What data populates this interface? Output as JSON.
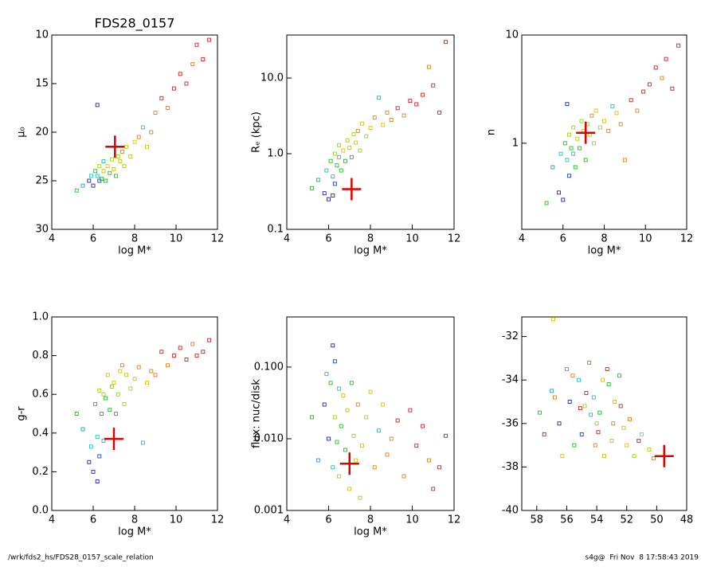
{
  "chart_data": [
    {
      "type": "scatter",
      "title": "FDS28_0157",
      "xlabel": "log M*",
      "ylabel": "μ₀",
      "xlim": [
        4,
        12
      ],
      "ylim": [
        30,
        10
      ],
      "xticks": [
        4,
        6,
        8,
        10,
        12
      ],
      "yticks": [
        10,
        15,
        20,
        25,
        30
      ],
      "ylog": false,
      "x": [
        5.2,
        5.5,
        5.8,
        5.9,
        6.0,
        6.1,
        6.2,
        6.3,
        6.3,
        6.4,
        6.5,
        6.5,
        6.6,
        6.7,
        6.8,
        6.9,
        7.0,
        7.1,
        7.2,
        7.3,
        7.4,
        7.5,
        7.6,
        7.8,
        8.0,
        8.2,
        8.4,
        8.6,
        8.8,
        9.0,
        9.3,
        9.6,
        9.9,
        10.2,
        10.5,
        10.8,
        11.0,
        11.3,
        11.6,
        6.2
      ],
      "y": [
        26,
        25.5,
        25,
        24.5,
        25.5,
        24,
        24.5,
        25,
        23.5,
        24.8,
        23,
        24,
        25,
        23.5,
        24.2,
        22.8,
        23.8,
        24.5,
        22.5,
        23,
        22,
        23.5,
        21.5,
        22.5,
        21,
        20.5,
        19.5,
        21.5,
        20,
        18,
        16.5,
        17.5,
        15.5,
        14,
        15,
        13,
        11,
        12.5,
        10.5,
        17.2
      ],
      "colors": [
        "#20c020",
        "#20a0c0",
        "#2020c0",
        "#20c0c0",
        "#2020c0",
        "#20c020",
        "#20c0c0",
        "#2040c0",
        "#a0d020",
        "#20c020",
        "#20c0c0",
        "#a0d020",
        "#20c020",
        "#d0c020",
        "#20c020",
        "#a0d020",
        "#d0c020",
        "#20c020",
        "#a0d020",
        "#d0c020",
        "#e08020",
        "#a0d020",
        "#d0c020",
        "#a0d020",
        "#d0c020",
        "#e08020",
        "#20c0c0",
        "#d0c020",
        "#e08020",
        "#e08020",
        "#d02020",
        "#e08020",
        "#d02020",
        "#d02020",
        "#d02020",
        "#e08020",
        "#d02020",
        "#d02020",
        "#d02020",
        "#2020c0"
      ],
      "highlight": {
        "x": 7.05,
        "y": 21.5,
        "color": "#e00000"
      }
    },
    {
      "type": "scatter",
      "xlabel": "log M*",
      "ylabel": "Rₑ (kpc)",
      "xlim": [
        4,
        12
      ],
      "ylim": [
        0.1,
        37
      ],
      "xticks": [
        4,
        6,
        8,
        10,
        12
      ],
      "yticks": [
        0.1,
        {
          "value": 1,
          "label": "1.0"
        },
        {
          "value": 10,
          "label": "10.0"
        }
      ],
      "ylog": true,
      "x": [
        5.2,
        5.5,
        5.8,
        5.9,
        6.0,
        6.1,
        6.2,
        6.3,
        6.3,
        6.4,
        6.5,
        6.5,
        6.6,
        6.7,
        6.8,
        6.9,
        7.0,
        7.1,
        7.2,
        7.3,
        7.4,
        7.5,
        7.6,
        7.8,
        8.0,
        8.2,
        8.4,
        8.6,
        8.8,
        9.0,
        9.3,
        9.6,
        9.9,
        10.2,
        10.5,
        10.8,
        11.0,
        11.3,
        11.6,
        6.2
      ],
      "y": [
        0.35,
        0.45,
        0.3,
        0.6,
        0.25,
        0.8,
        0.5,
        0.4,
        1.0,
        0.7,
        0.9,
        1.3,
        0.6,
        1.1,
        0.8,
        1.5,
        1.2,
        0.9,
        1.8,
        1.4,
        2.0,
        1.1,
        2.5,
        1.7,
        2.2,
        3.0,
        5.5,
        2.4,
        3.5,
        2.8,
        4.0,
        3.2,
        5.0,
        4.5,
        6.0,
        14,
        8,
        3.5,
        30,
        0.28
      ],
      "colors": [
        "#20c020",
        "#20a0c0",
        "#2020c0",
        "#20c0c0",
        "#2020c0",
        "#20c020",
        "#20c0c0",
        "#2040c0",
        "#a0d020",
        "#20c020",
        "#20c0c0",
        "#a0d020",
        "#20c020",
        "#d0c020",
        "#20c020",
        "#a0d020",
        "#d0c020",
        "#20c020",
        "#a0d020",
        "#d0c020",
        "#e08020",
        "#a0d020",
        "#d0c020",
        "#a0d020",
        "#d0c020",
        "#e08020",
        "#20c0c0",
        "#d0c020",
        "#e08020",
        "#e08020",
        "#d02020",
        "#e08020",
        "#d02020",
        "#d02020",
        "#d02020",
        "#e08020",
        "#d02020",
        "#d02020",
        "#d02020",
        "#2020c0"
      ],
      "highlight": {
        "x": 7.1,
        "y": 0.34,
        "color": "#e00000"
      }
    },
    {
      "type": "scatter",
      "xlabel": "log M*",
      "ylabel": "n",
      "xlim": [
        4,
        12
      ],
      "ylim": [
        0.16,
        10
      ],
      "xticks": [
        4,
        6,
        8,
        10,
        12
      ],
      "yticks": [
        1,
        10
      ],
      "ylog": true,
      "x": [
        5.2,
        5.5,
        5.8,
        5.9,
        6.0,
        6.1,
        6.2,
        6.3,
        6.3,
        6.4,
        6.5,
        6.5,
        6.6,
        6.7,
        6.8,
        6.9,
        7.0,
        7.1,
        7.2,
        7.3,
        7.4,
        7.5,
        7.6,
        7.8,
        8.0,
        8.2,
        8.4,
        8.6,
        8.8,
        9.0,
        9.3,
        9.6,
        9.9,
        10.2,
        10.5,
        10.8,
        11.0,
        11.3,
        11.6,
        6.2
      ],
      "y": [
        0.28,
        0.6,
        0.35,
        0.8,
        0.3,
        1.0,
        0.7,
        0.5,
        1.2,
        0.9,
        0.8,
        1.4,
        0.6,
        1.1,
        0.9,
        1.6,
        1.3,
        0.7,
        1.5,
        1.2,
        1.8,
        1.0,
        2.0,
        1.4,
        1.6,
        1.3,
        2.2,
        1.9,
        1.5,
        0.7,
        2.5,
        2.0,
        3.0,
        3.5,
        5,
        4,
        6,
        3.2,
        8,
        2.3
      ],
      "colors": [
        "#20c020",
        "#20a0c0",
        "#2020c0",
        "#20c0c0",
        "#2020c0",
        "#20c020",
        "#20c0c0",
        "#2040c0",
        "#a0d020",
        "#20c020",
        "#20c0c0",
        "#a0d020",
        "#20c020",
        "#d0c020",
        "#20c020",
        "#a0d020",
        "#d0c020",
        "#20c020",
        "#a0d020",
        "#d0c020",
        "#e08020",
        "#a0d020",
        "#d0c020",
        "#a0d020",
        "#d0c020",
        "#e08020",
        "#20c0c0",
        "#d0c020",
        "#e08020",
        "#e08020",
        "#d02020",
        "#e08020",
        "#d02020",
        "#d02020",
        "#d02020",
        "#e08020",
        "#d02020",
        "#d02020",
        "#d02020",
        "#2020c0"
      ],
      "highlight": {
        "x": 7.1,
        "y": 1.25,
        "color": "#e00000"
      }
    },
    {
      "type": "scatter",
      "xlabel": "log M*",
      "ylabel": "g-r",
      "xlim": [
        4,
        12
      ],
      "ylim": [
        0,
        1
      ],
      "xticks": [
        4,
        6,
        8,
        10,
        12
      ],
      "yticks": [
        {
          "value": 0,
          "label": "0.0"
        },
        0.2,
        0.4,
        0.6,
        0.8,
        {
          "value": 1,
          "label": "1.0"
        }
      ],
      "ylog": false,
      "x": [
        5.2,
        5.5,
        5.8,
        5.9,
        6.0,
        6.1,
        6.2,
        6.3,
        6.3,
        6.4,
        6.5,
        6.5,
        6.6,
        6.7,
        6.8,
        6.9,
        7.0,
        7.1,
        7.2,
        7.3,
        7.4,
        7.5,
        7.6,
        7.8,
        8.0,
        8.2,
        8.4,
        8.6,
        8.8,
        9.0,
        9.3,
        9.6,
        9.9,
        10.2,
        10.5,
        10.8,
        11.0,
        11.3,
        11.6,
        6.2
      ],
      "y": [
        0.5,
        0.42,
        0.25,
        0.33,
        0.2,
        0.55,
        0.38,
        0.28,
        0.62,
        0.5,
        0.36,
        0.6,
        0.58,
        0.7,
        0.52,
        0.64,
        0.66,
        0.5,
        0.6,
        0.72,
        0.75,
        0.55,
        0.7,
        0.63,
        0.68,
        0.74,
        0.35,
        0.66,
        0.72,
        0.7,
        0.82,
        0.75,
        0.8,
        0.84,
        0.78,
        0.86,
        0.8,
        0.82,
        0.88,
        0.15
      ],
      "colors": [
        "#20c020",
        "#20a0c0",
        "#2020c0",
        "#20c0c0",
        "#2020c0",
        "#20c020",
        "#20c0c0",
        "#2040c0",
        "#a0d020",
        "#20c020",
        "#20c0c0",
        "#a0d020",
        "#20c020",
        "#d0c020",
        "#20c020",
        "#a0d020",
        "#d0c020",
        "#20c020",
        "#a0d020",
        "#d0c020",
        "#e08020",
        "#a0d020",
        "#d0c020",
        "#a0d020",
        "#d0c020",
        "#e08020",
        "#20c0c0",
        "#d0c020",
        "#e08020",
        "#e08020",
        "#d02020",
        "#e08020",
        "#d02020",
        "#d02020",
        "#d02020",
        "#e08020",
        "#d02020",
        "#d02020",
        "#d02020",
        "#2020c0"
      ],
      "highlight": {
        "x": 7.0,
        "y": 0.37,
        "color": "#e00000"
      }
    },
    {
      "type": "scatter",
      "xlabel": "log M*",
      "ylabel": "flux: nuc/disk",
      "xlim": [
        4,
        12
      ],
      "ylim": [
        0.001,
        0.5
      ],
      "xticks": [
        4,
        6,
        8,
        10,
        12
      ],
      "yticks": [
        0.001,
        {
          "value": 0.01,
          "label": "0.010"
        },
        {
          "value": 0.1,
          "label": "0.100"
        }
      ],
      "ylog": true,
      "x": [
        5.2,
        5.5,
        5.8,
        5.9,
        6.0,
        6.1,
        6.2,
        6.3,
        6.3,
        6.4,
        6.5,
        6.5,
        6.6,
        6.7,
        6.8,
        6.9,
        7.0,
        7.1,
        7.2,
        7.3,
        7.4,
        7.5,
        7.6,
        7.8,
        8.0,
        8.2,
        8.4,
        8.6,
        8.8,
        9.0,
        9.3,
        9.6,
        9.9,
        10.2,
        10.5,
        10.8,
        11.0,
        11.3,
        11.6,
        6.2
      ],
      "y": [
        0.02,
        0.005,
        0.03,
        0.08,
        0.01,
        0.06,
        0.004,
        0.12,
        0.02,
        0.009,
        0.05,
        0.003,
        0.015,
        0.04,
        0.007,
        0.025,
        0.002,
        0.06,
        0.011,
        0.005,
        0.03,
        0.0015,
        0.008,
        0.02,
        0.045,
        0.004,
        0.013,
        0.03,
        0.006,
        0.01,
        0.018,
        0.003,
        0.025,
        0.008,
        0.015,
        0.005,
        0.002,
        0.004,
        0.011,
        0.2
      ],
      "colors": [
        "#20c020",
        "#20a0c0",
        "#2020c0",
        "#20c0c0",
        "#2020c0",
        "#20c020",
        "#20c0c0",
        "#2040c0",
        "#a0d020",
        "#20c020",
        "#20c0c0",
        "#a0d020",
        "#20c020",
        "#d0c020",
        "#20c020",
        "#a0d020",
        "#d0c020",
        "#20c020",
        "#a0d020",
        "#d0c020",
        "#e08020",
        "#a0d020",
        "#d0c020",
        "#a0d020",
        "#d0c020",
        "#e08020",
        "#20c0c0",
        "#d0c020",
        "#e08020",
        "#e08020",
        "#d02020",
        "#e08020",
        "#d02020",
        "#d02020",
        "#d02020",
        "#e08020",
        "#d02020",
        "#d02020",
        "#d02020",
        "#2020c0"
      ],
      "highlight": {
        "x": 7.0,
        "y": 0.0045,
        "color": "#e00000"
      }
    },
    {
      "type": "scatter",
      "xlim": [
        59,
        48
      ],
      "ylim": [
        -40,
        -31.1
      ],
      "xticks": [
        58,
        56,
        54,
        52,
        50,
        48
      ],
      "yticks": [
        -40,
        -38,
        -36,
        -34,
        -32
      ],
      "ylog": false,
      "x": [
        57.8,
        57,
        56.5,
        56,
        55.8,
        55.5,
        55.2,
        55,
        54.8,
        54.5,
        54.2,
        54,
        53.8,
        53.5,
        53.2,
        53,
        52.8,
        52.5,
        52.2,
        52,
        51.8,
        51.5,
        51,
        50.5,
        56.3,
        55.6,
        54.4,
        53.6,
        52.9,
        56.8,
        55.1,
        54.1,
        53.3,
        52.4,
        51.2,
        50.2,
        57.5,
        54.7,
        53.9,
        56.9
      ],
      "y": [
        -35.5,
        -34.5,
        -36,
        -33.5,
        -35,
        -37,
        -34,
        -36.5,
        -35.2,
        -33.2,
        -34.8,
        -36,
        -35.5,
        -37.5,
        -34.2,
        -36.8,
        -35,
        -33.8,
        -36.2,
        -37,
        -35.8,
        -37.5,
        -36.5,
        -37.2,
        -37.5,
        -33.8,
        -35.6,
        -34,
        -36,
        -34.8,
        -35.3,
        -37,
        -33.5,
        -35.2,
        -36.8,
        -37.6,
        -36.5,
        -34.6,
        -36.4,
        -31.2
      ],
      "colors": [
        "#20c020",
        "#20a0c0",
        "#2020c0",
        "#20c0c0",
        "#2020c0",
        "#20c020",
        "#20c0c0",
        "#2040c0",
        "#a0d020",
        "#20c020",
        "#20c0c0",
        "#a0d020",
        "#20c020",
        "#d0c020",
        "#20c020",
        "#a0d020",
        "#d0c020",
        "#20c020",
        "#a0d020",
        "#d0c020",
        "#e08020",
        "#a0d020",
        "#d0c020",
        "#a0d020",
        "#d0c020",
        "#e08020",
        "#20c0c0",
        "#d0c020",
        "#e08020",
        "#e08020",
        "#d02020",
        "#e08020",
        "#d02020",
        "#d02020",
        "#d02020",
        "#e08020",
        "#d02020",
        "#d02020",
        "#d02020",
        "#d0c020"
      ],
      "highlight": {
        "x": 49.5,
        "y": -37.5,
        "color": "#e00000"
      }
    }
  ],
  "footer": {
    "left": "/wrk/fds2_hs/FDS28_0157_scale_relation",
    "right": "s4g@  Fri Nov  8 17:58:43 2019"
  }
}
